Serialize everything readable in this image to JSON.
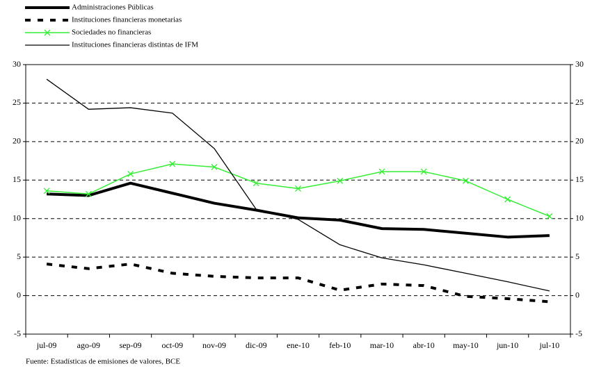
{
  "chart_data": {
    "type": "line",
    "categories": [
      "jul-09",
      "ago-09",
      "sep-09",
      "oct-09",
      "nov-09",
      "dic-09",
      "ene-10",
      "feb-10",
      "mar-10",
      "abr-10",
      "may-10",
      "jun-10",
      "jul-10"
    ],
    "series": [
      {
        "name": "Administraciones Públicas",
        "color": "#000000",
        "style": "solid",
        "width": 4,
        "marker": "none",
        "values": [
          13.2,
          13.0,
          14.6,
          13.3,
          12.0,
          11.1,
          10.1,
          9.8,
          8.7,
          8.6,
          8.1,
          7.6,
          7.8
        ]
      },
      {
        "name": "Instituciones financieras monetarias",
        "color": "#000000",
        "style": "dashed",
        "width": 4,
        "marker": "none",
        "values": [
          4.1,
          3.5,
          4.1,
          2.9,
          2.5,
          2.3,
          2.3,
          0.7,
          1.5,
          1.3,
          -0.1,
          -0.4,
          -0.8
        ]
      },
      {
        "name": "Sociedades no financieras",
        "color": "#33ee33",
        "style": "solid",
        "width": 1.5,
        "marker": "x",
        "values": [
          13.6,
          13.2,
          15.8,
          17.1,
          16.7,
          14.6,
          13.9,
          14.9,
          16.1,
          16.1,
          14.9,
          12.5,
          10.3
        ]
      },
      {
        "name": "Instituciones financieras distintas de IFM",
        "color": "#000000",
        "style": "solid",
        "width": 1.3,
        "marker": "none",
        "values": [
          28.1,
          24.2,
          24.4,
          23.7,
          19.1,
          11.2,
          9.9,
          6.6,
          4.9,
          4.0,
          2.9,
          1.8,
          0.6
        ]
      }
    ],
    "ylim": [
      -5,
      30
    ],
    "yticks": [
      -5,
      0,
      5,
      10,
      15,
      20,
      25,
      30
    ],
    "mirror_y": true,
    "grid": true,
    "legend": "top-left",
    "source": "Fuente: Estadísticas de emisiones de valores, BCE"
  }
}
